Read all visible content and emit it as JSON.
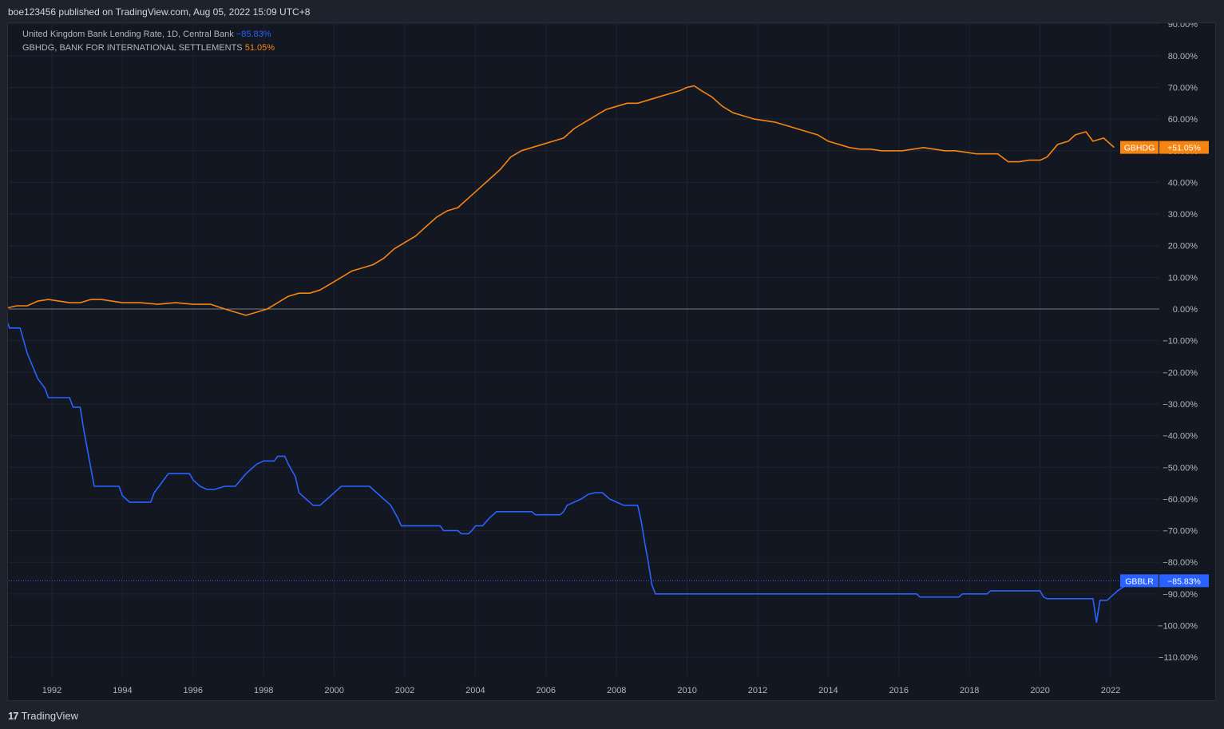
{
  "header": {
    "publish_text": "boe123456 published on TradingView.com, Aug 05, 2022 15:09 UTC+8"
  },
  "legend": [
    {
      "name": "United Kingdom Bank Lending Rate, 1D, Central Bank",
      "value": "−85.83%",
      "color": "#2962ff"
    },
    {
      "name": "GBHDG, BANK FOR INTERNATIONAL SETTLEMENTS",
      "value": "51.05%",
      "color": "#f68410"
    }
  ],
  "footer": {
    "logo_icon": "tradingview-logo-icon",
    "logo_mark": "17",
    "brand": "TradingView"
  },
  "colors": {
    "background": "#131722",
    "grid": "#1f2330",
    "axis_text": "#b2b5be",
    "zero_line": "#787b86"
  },
  "chart_data": {
    "type": "line",
    "x_ticks": [
      "1992",
      "1994",
      "1996",
      "1998",
      "2000",
      "2002",
      "2004",
      "2006",
      "2008",
      "2010",
      "2012",
      "2014",
      "2016",
      "2018",
      "2020",
      "2022"
    ],
    "y_ticks": [
      "90.00%",
      "80.00%",
      "70.00%",
      "60.00%",
      "50.00%",
      "40.00%",
      "30.00%",
      "20.00%",
      "10.00%",
      "0.00%",
      "−10.00%",
      "−20.00%",
      "−30.00%",
      "−40.00%",
      "−50.00%",
      "−60.00%",
      "−70.00%",
      "−80.00%",
      "−90.00%",
      "−100.00%",
      "−110.00%"
    ],
    "ylim": [
      -115,
      90
    ],
    "xlim": [
      1990.6,
      2023.3
    ],
    "y_unit": "%",
    "series": [
      {
        "name": "GBHDG",
        "color": "#f68410",
        "badge": {
          "label": "GBHDG",
          "value": "+51.05%"
        },
        "points": [
          [
            1990.6,
            0
          ],
          [
            1991.0,
            1
          ],
          [
            1991.3,
            1
          ],
          [
            1991.6,
            2.5
          ],
          [
            1991.9,
            3
          ],
          [
            1992.2,
            2.5
          ],
          [
            1992.5,
            2
          ],
          [
            1992.8,
            2
          ],
          [
            1993.1,
            3
          ],
          [
            1993.4,
            3
          ],
          [
            1993.7,
            2.5
          ],
          [
            1994.0,
            2
          ],
          [
            1994.5,
            2
          ],
          [
            1995.0,
            1.5
          ],
          [
            1995.5,
            2
          ],
          [
            1996.0,
            1.5
          ],
          [
            1996.5,
            1.5
          ],
          [
            1996.9,
            0
          ],
          [
            1997.2,
            -1
          ],
          [
            1997.5,
            -2
          ],
          [
            1997.8,
            -1
          ],
          [
            1998.1,
            0
          ],
          [
            1998.4,
            2
          ],
          [
            1998.7,
            4
          ],
          [
            1999.0,
            5
          ],
          [
            1999.3,
            5
          ],
          [
            1999.6,
            6
          ],
          [
            1999.9,
            8
          ],
          [
            2000.2,
            10
          ],
          [
            2000.5,
            12
          ],
          [
            2000.8,
            13
          ],
          [
            2001.1,
            14
          ],
          [
            2001.4,
            16
          ],
          [
            2001.7,
            19
          ],
          [
            2002.0,
            21
          ],
          [
            2002.3,
            23
          ],
          [
            2002.6,
            26
          ],
          [
            2002.9,
            29
          ],
          [
            2003.2,
            31
          ],
          [
            2003.5,
            32
          ],
          [
            2003.8,
            35
          ],
          [
            2004.1,
            38
          ],
          [
            2004.4,
            41
          ],
          [
            2004.7,
            44
          ],
          [
            2005.0,
            48
          ],
          [
            2005.3,
            50
          ],
          [
            2005.6,
            51
          ],
          [
            2005.9,
            52
          ],
          [
            2006.2,
            53
          ],
          [
            2006.5,
            54
          ],
          [
            2006.8,
            57
          ],
          [
            2007.1,
            59
          ],
          [
            2007.4,
            61
          ],
          [
            2007.7,
            63
          ],
          [
            2008.0,
            64
          ],
          [
            2008.3,
            65
          ],
          [
            2008.6,
            65
          ],
          [
            2008.9,
            66
          ],
          [
            2009.2,
            67
          ],
          [
            2009.5,
            68
          ],
          [
            2009.8,
            69
          ],
          [
            2010.0,
            70
          ],
          [
            2010.2,
            70.5
          ],
          [
            2010.4,
            69
          ],
          [
            2010.7,
            67
          ],
          [
            2011.0,
            64
          ],
          [
            2011.3,
            62
          ],
          [
            2011.6,
            61
          ],
          [
            2011.9,
            60
          ],
          [
            2012.2,
            59.5
          ],
          [
            2012.5,
            59
          ],
          [
            2012.8,
            58
          ],
          [
            2013.1,
            57
          ],
          [
            2013.4,
            56
          ],
          [
            2013.7,
            55
          ],
          [
            2014.0,
            53
          ],
          [
            2014.3,
            52
          ],
          [
            2014.6,
            51
          ],
          [
            2014.9,
            50.5
          ],
          [
            2015.2,
            50.5
          ],
          [
            2015.5,
            50
          ],
          [
            2015.8,
            50
          ],
          [
            2016.1,
            50
          ],
          [
            2016.4,
            50.5
          ],
          [
            2016.7,
            51
          ],
          [
            2017.0,
            50.5
          ],
          [
            2017.3,
            50
          ],
          [
            2017.6,
            50
          ],
          [
            2017.9,
            49.5
          ],
          [
            2018.2,
            49
          ],
          [
            2018.5,
            49
          ],
          [
            2018.8,
            49
          ],
          [
            2019.1,
            46.5
          ],
          [
            2019.4,
            46.5
          ],
          [
            2019.7,
            47
          ],
          [
            2020.0,
            47
          ],
          [
            2020.2,
            48
          ],
          [
            2020.5,
            52
          ],
          [
            2020.8,
            53
          ],
          [
            2021.0,
            55
          ],
          [
            2021.3,
            56
          ],
          [
            2021.5,
            53
          ],
          [
            2021.8,
            54
          ],
          [
            2022.1,
            51.05
          ]
        ]
      },
      {
        "name": "GBBLR",
        "color": "#2962ff",
        "badge": {
          "label": "GBBLR",
          "value": "−85.83%"
        },
        "points": [
          [
            1990.6,
            0
          ],
          [
            1990.8,
            -6
          ],
          [
            1991.1,
            -6
          ],
          [
            1991.3,
            -14
          ],
          [
            1991.6,
            -22
          ],
          [
            1991.8,
            -25
          ],
          [
            1991.9,
            -28
          ],
          [
            1992.2,
            -28
          ],
          [
            1992.5,
            -28
          ],
          [
            1992.6,
            -31
          ],
          [
            1992.8,
            -31
          ],
          [
            1992.9,
            -38
          ],
          [
            1993.1,
            -50
          ],
          [
            1993.2,
            -56
          ],
          [
            1993.5,
            -56
          ],
          [
            1993.9,
            -56
          ],
          [
            1994.0,
            -59
          ],
          [
            1994.2,
            -61
          ],
          [
            1994.5,
            -61
          ],
          [
            1994.8,
            -61
          ],
          [
            1994.9,
            -58
          ],
          [
            1995.1,
            -55
          ],
          [
            1995.3,
            -52
          ],
          [
            1995.6,
            -52
          ],
          [
            1995.9,
            -52
          ],
          [
            1996.0,
            -54
          ],
          [
            1996.2,
            -56
          ],
          [
            1996.4,
            -57
          ],
          [
            1996.6,
            -57
          ],
          [
            1996.9,
            -56
          ],
          [
            1997.2,
            -56
          ],
          [
            1997.5,
            -52
          ],
          [
            1997.8,
            -49
          ],
          [
            1998.0,
            -48
          ],
          [
            1998.3,
            -48
          ],
          [
            1998.4,
            -46.5
          ],
          [
            1998.6,
            -46.5
          ],
          [
            1998.7,
            -49
          ],
          [
            1998.9,
            -53
          ],
          [
            1999.0,
            -58
          ],
          [
            1999.2,
            -60
          ],
          [
            1999.4,
            -62
          ],
          [
            1999.6,
            -62
          ],
          [
            1999.8,
            -60
          ],
          [
            2000.0,
            -58
          ],
          [
            2000.2,
            -56
          ],
          [
            2000.5,
            -56
          ],
          [
            2000.8,
            -56
          ],
          [
            2001.0,
            -56
          ],
          [
            2001.2,
            -58
          ],
          [
            2001.4,
            -60
          ],
          [
            2001.6,
            -62
          ],
          [
            2001.8,
            -66
          ],
          [
            2001.9,
            -68.5
          ],
          [
            2002.2,
            -68.5
          ],
          [
            2002.6,
            -68.5
          ],
          [
            2003.0,
            -68.5
          ],
          [
            2003.1,
            -70
          ],
          [
            2003.3,
            -70
          ],
          [
            2003.5,
            -70
          ],
          [
            2003.6,
            -71
          ],
          [
            2003.8,
            -71
          ],
          [
            2003.9,
            -70
          ],
          [
            2004.0,
            -68.5
          ],
          [
            2004.2,
            -68.5
          ],
          [
            2004.4,
            -66
          ],
          [
            2004.6,
            -64
          ],
          [
            2004.9,
            -64
          ],
          [
            2005.2,
            -64
          ],
          [
            2005.6,
            -64
          ],
          [
            2005.7,
            -65
          ],
          [
            2006.0,
            -65
          ],
          [
            2006.4,
            -65
          ],
          [
            2006.5,
            -64
          ],
          [
            2006.6,
            -62
          ],
          [
            2006.8,
            -61
          ],
          [
            2007.0,
            -60
          ],
          [
            2007.2,
            -58.5
          ],
          [
            2007.4,
            -58
          ],
          [
            2007.6,
            -58
          ],
          [
            2007.8,
            -60
          ],
          [
            2008.0,
            -61
          ],
          [
            2008.2,
            -62
          ],
          [
            2008.6,
            -62
          ],
          [
            2008.7,
            -67
          ],
          [
            2008.8,
            -74
          ],
          [
            2008.9,
            -80
          ],
          [
            2009.0,
            -87
          ],
          [
            2009.1,
            -90
          ],
          [
            2009.5,
            -90
          ],
          [
            2010.5,
            -90
          ],
          [
            2012.0,
            -90
          ],
          [
            2014.0,
            -90
          ],
          [
            2015.5,
            -90
          ],
          [
            2016.5,
            -90
          ],
          [
            2016.6,
            -91
          ],
          [
            2017.0,
            -91
          ],
          [
            2017.5,
            -91
          ],
          [
            2017.7,
            -91
          ],
          [
            2017.8,
            -90
          ],
          [
            2018.0,
            -90
          ],
          [
            2018.3,
            -90
          ],
          [
            2018.5,
            -90
          ],
          [
            2018.6,
            -89
          ],
          [
            2018.9,
            -89
          ],
          [
            2019.5,
            -89
          ],
          [
            2020.0,
            -89
          ],
          [
            2020.1,
            -91
          ],
          [
            2020.2,
            -91.5
          ],
          [
            2020.8,
            -91.5
          ],
          [
            2021.0,
            -91.5
          ],
          [
            2021.3,
            -91.5
          ],
          [
            2021.5,
            -91.5
          ],
          [
            2021.6,
            -99
          ],
          [
            2021.7,
            -92
          ],
          [
            2021.9,
            -92
          ],
          [
            2022.0,
            -91
          ],
          [
            2022.2,
            -89
          ],
          [
            2022.4,
            -87.5
          ],
          [
            2022.6,
            -85.83
          ]
        ]
      }
    ],
    "last_value_line": {
      "series": "GBBLR",
      "value": -85.83,
      "style": "dotted"
    }
  }
}
